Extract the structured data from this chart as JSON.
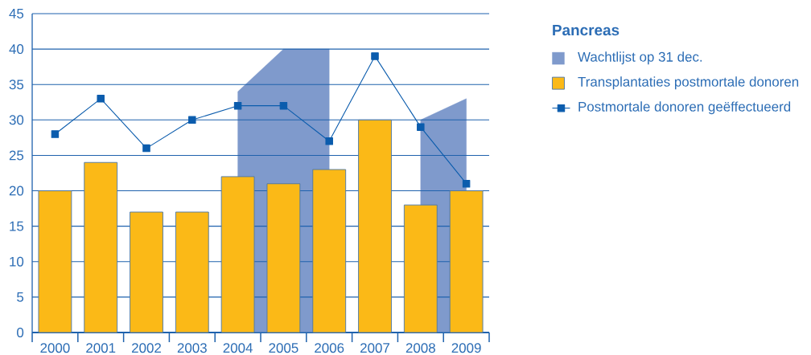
{
  "chart_data": {
    "type": "bar",
    "categories": [
      "2000",
      "2001",
      "2002",
      "2003",
      "2004",
      "2005",
      "2006",
      "2007",
      "2008",
      "2009"
    ],
    "series": [
      {
        "name": "Wachtlijst op 31 dec.",
        "type": "area",
        "color": "#7f9acc",
        "values": [
          null,
          null,
          null,
          null,
          34,
          40,
          40,
          null,
          30,
          33
        ]
      },
      {
        "name": "Transplantaties postmortale donoren",
        "color": "#fbb917",
        "values": [
          20,
          24,
          17,
          17,
          22,
          21,
          23,
          30,
          18,
          20
        ]
      },
      {
        "name": "Postmortale donoren geëffectueerd",
        "type": "line",
        "color": "#0b5cad",
        "marker": "square",
        "values": [
          28,
          33,
          26,
          30,
          32,
          32,
          27,
          39,
          29,
          21
        ]
      }
    ],
    "ylim": [
      0,
      45
    ],
    "yticks": [
      0,
      5,
      10,
      15,
      20,
      25,
      30,
      35,
      40,
      45
    ],
    "grid": "y",
    "legend": "top right",
    "legend_title": "Pancreas"
  }
}
